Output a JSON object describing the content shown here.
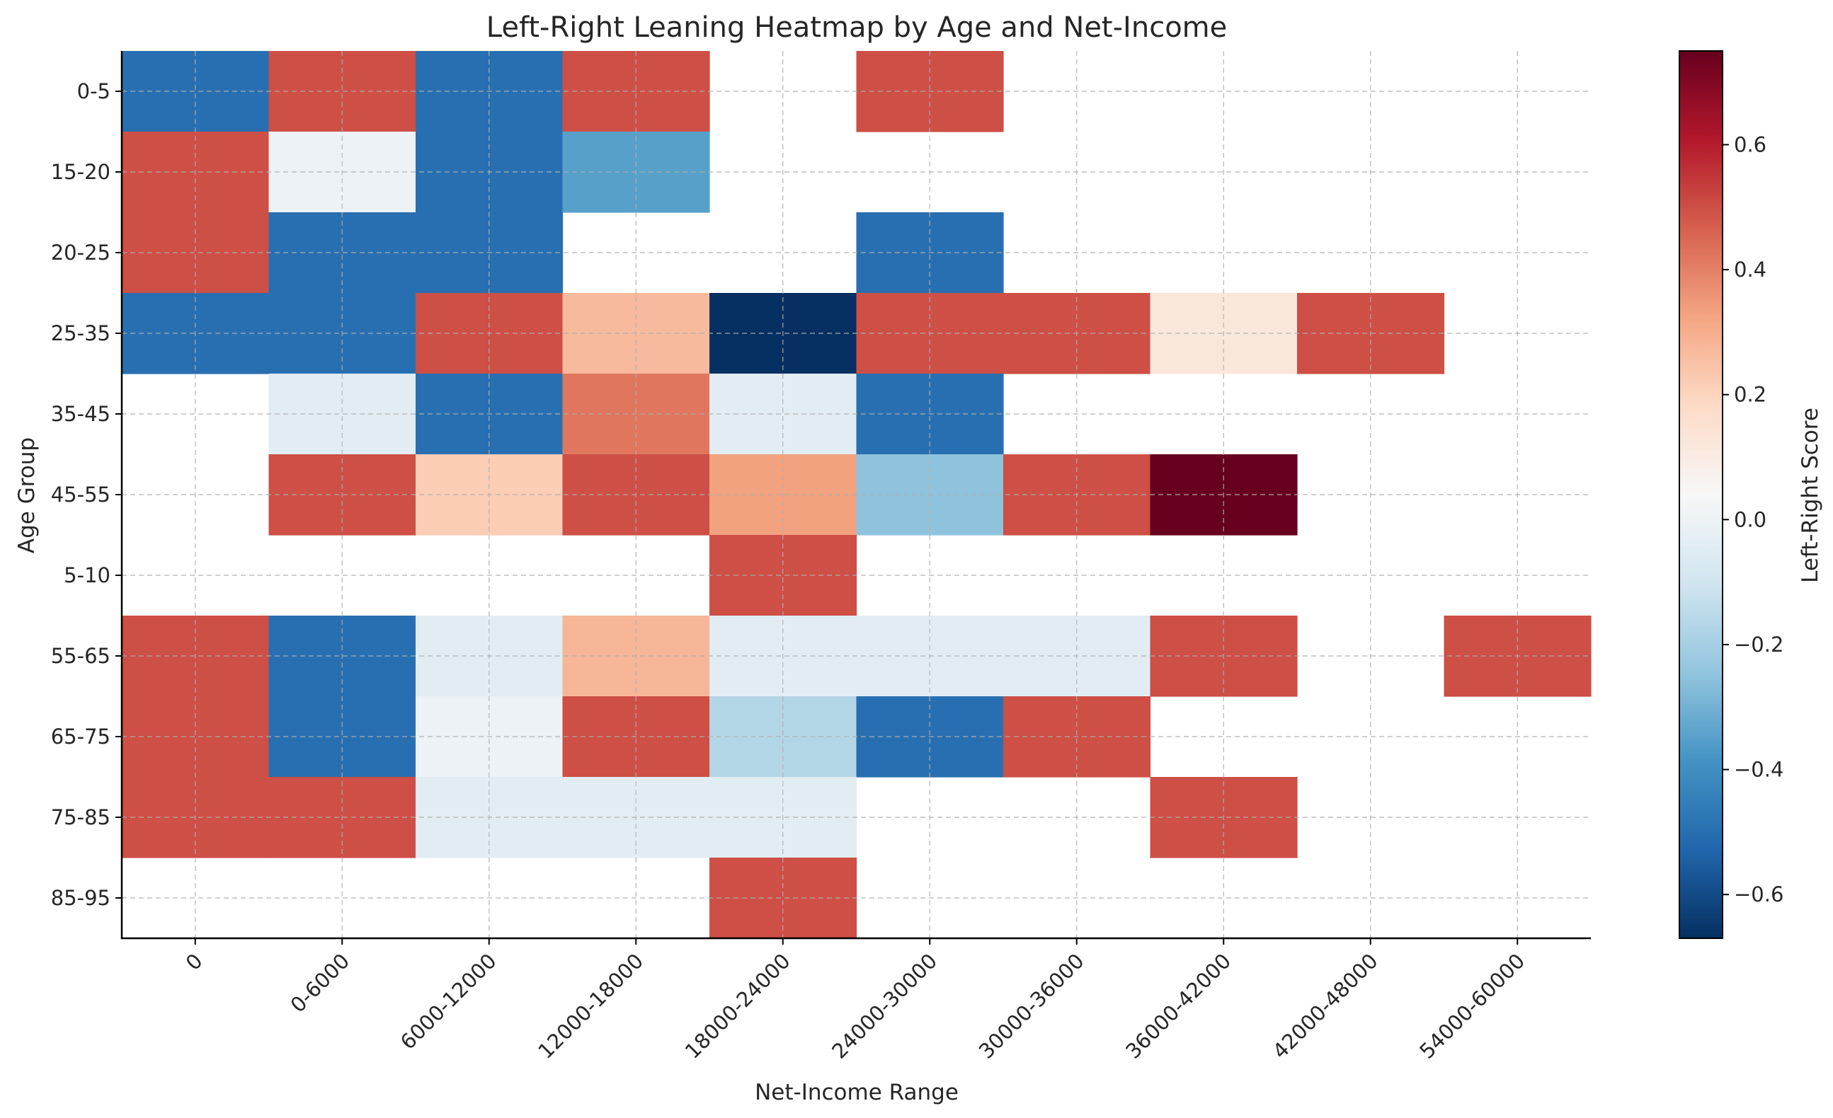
{
  "chart_data": {
    "type": "heatmap",
    "title": "Left-Right Leaning Heatmap by Age and Net-Income",
    "xlabel": "Net-Income Range",
    "ylabel": "Age Group",
    "colorbar_label": "Left-Right Score",
    "colormap": "RdBu_r",
    "vmin": -0.67,
    "vmax": 0.75,
    "colorbar_ticks": [
      0.6,
      0.4,
      0.2,
      0.0,
      -0.2,
      -0.4,
      -0.6
    ],
    "colorbar_tick_labels": [
      "0.6",
      "0.4",
      "0.2",
      "0.0",
      "−0.2",
      "−0.4",
      "−0.6"
    ],
    "grid": true,
    "x_categories": [
      "0",
      "0-6000",
      "6000-12000",
      "12000-18000",
      "18000-24000",
      "24000-30000",
      "30000-36000",
      "36000-42000",
      "42000-48000",
      "54000-60000"
    ],
    "y_categories": [
      "0-5",
      "15-20",
      "20-25",
      "25-35",
      "35-45",
      "45-55",
      "5-10",
      "55-65",
      "65-75",
      "75-85",
      "85-95"
    ],
    "values": [
      [
        -0.5,
        0.5,
        -0.5,
        0.5,
        null,
        0.5,
        null,
        null,
        null,
        null
      ],
      [
        0.5,
        0.0,
        -0.5,
        -0.35,
        null,
        null,
        null,
        null,
        null,
        null
      ],
      [
        0.5,
        -0.5,
        -0.5,
        null,
        null,
        -0.5,
        null,
        null,
        null,
        null
      ],
      [
        -0.5,
        -0.5,
        0.5,
        0.27,
        -0.67,
        0.5,
        0.5,
        0.12,
        0.5,
        null
      ],
      [
        null,
        -0.04,
        -0.5,
        0.42,
        -0.04,
        -0.5,
        null,
        null,
        null,
        null
      ],
      [
        null,
        0.5,
        0.22,
        0.5,
        0.33,
        -0.25,
        0.5,
        0.75,
        null,
        null
      ],
      [
        null,
        null,
        null,
        null,
        0.5,
        null,
        null,
        null,
        null,
        null
      ],
      [
        0.5,
        -0.5,
        -0.04,
        0.28,
        -0.04,
        -0.04,
        -0.04,
        0.5,
        null,
        0.5
      ],
      [
        0.5,
        -0.5,
        0.0,
        0.5,
        -0.17,
        -0.5,
        0.5,
        null,
        null,
        null
      ],
      [
        0.5,
        0.5,
        -0.04,
        -0.04,
        -0.04,
        null,
        null,
        0.5,
        null,
        null
      ],
      [
        null,
        null,
        null,
        null,
        0.5,
        null,
        null,
        null,
        null,
        null
      ]
    ]
  }
}
